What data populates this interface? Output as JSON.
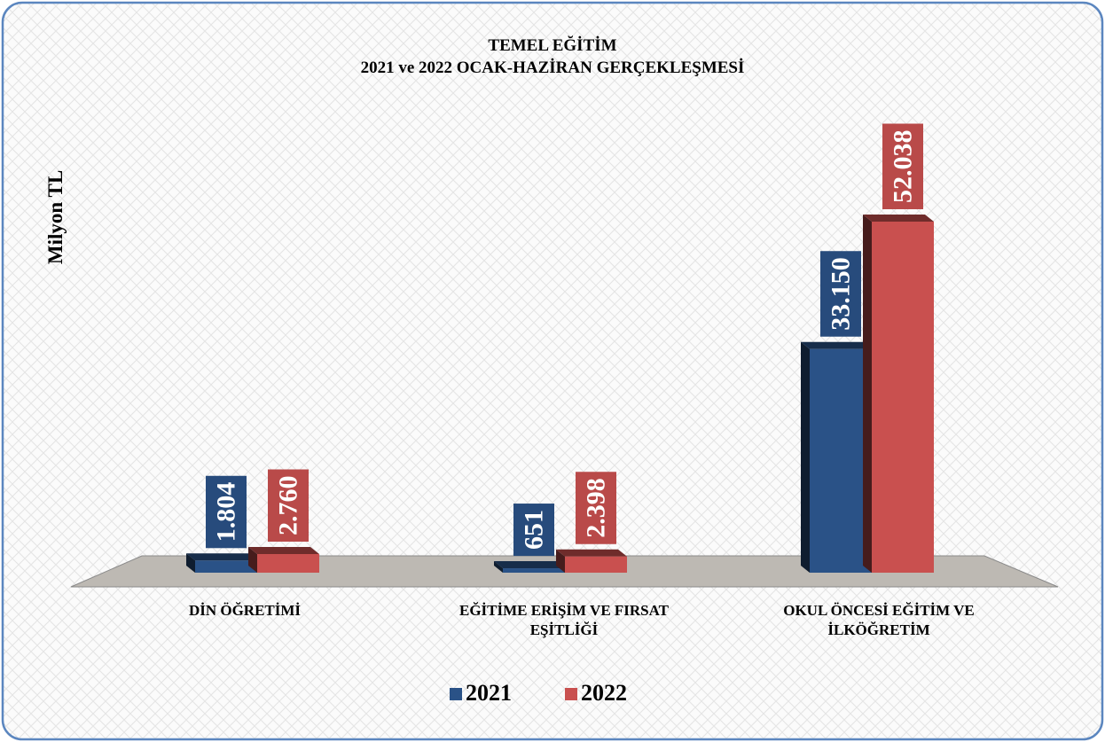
{
  "chart_data": {
    "type": "bar3d",
    "title": "TEMEL EĞİTİM",
    "subtitle": "2021 ve 2022 OCAK-HAZİRAN GERÇEKLEŞMESİ",
    "y_label": "Milyon TL",
    "categories": [
      "DİN ÖĞRETİMİ",
      "EĞİTİME ERİŞİM VE FIRSAT EŞİTLİĞİ",
      "OKUL ÖNCESİ EĞİTİM VE İLKÖĞRETİM"
    ],
    "series": [
      {
        "name": "2021",
        "color": "#2a5287",
        "values": [
          1804,
          651,
          33150
        ],
        "value_labels": [
          "1.804",
          "651",
          "33.150"
        ]
      },
      {
        "name": "2022",
        "color": "#c9504f",
        "values": [
          2760,
          2398,
          52038
        ],
        "value_labels": [
          "2.760",
          "2.398",
          "52.038"
        ]
      }
    ]
  }
}
